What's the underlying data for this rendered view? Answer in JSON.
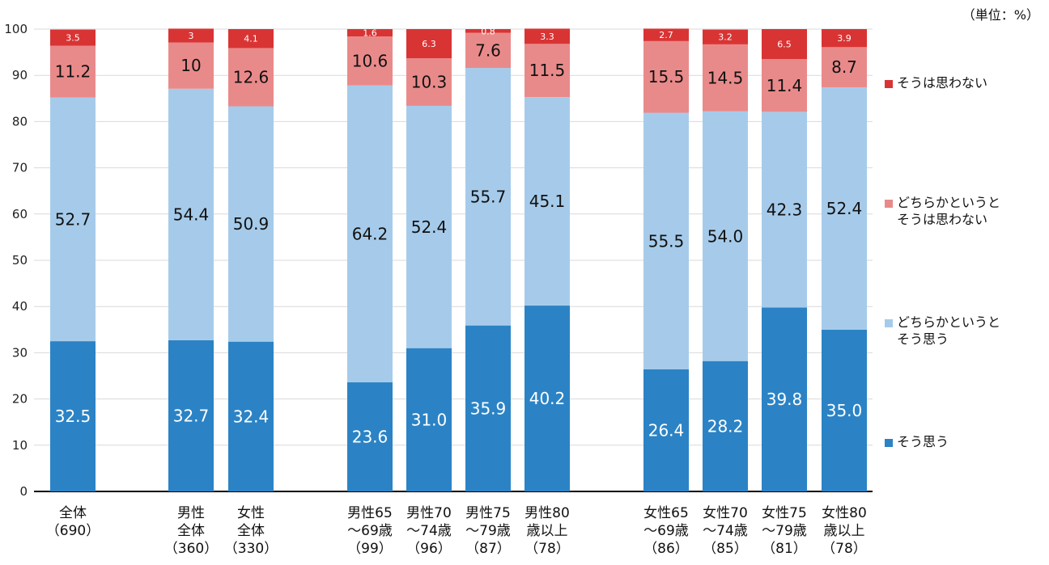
{
  "chart_data": {
    "type": "bar",
    "stacked": true,
    "unit_label": "（単位：%）",
    "ylim": [
      0,
      100
    ],
    "yticks": [
      0,
      10,
      20,
      30,
      40,
      50,
      60,
      70,
      80,
      90,
      100
    ],
    "grid": true,
    "legend_position": "right",
    "categories": [
      [
        "全体",
        "（690）"
      ],
      [
        "男性",
        "全体",
        "（360）"
      ],
      [
        "女性",
        "全体",
        "（330）"
      ],
      [
        "男性65",
        "～69歳",
        "（99）"
      ],
      [
        "男性70",
        "～74歳",
        "（96）"
      ],
      [
        "男性75",
        "～79歳",
        "（87）"
      ],
      [
        "男性80",
        "歳以上",
        "（78）"
      ],
      [
        "女性65",
        "～69歳",
        "（86）"
      ],
      [
        "女性70",
        "～74歳",
        "（85）"
      ],
      [
        "女性75",
        "～79歳",
        "（81）"
      ],
      [
        "女性80",
        "歳以上",
        "（78）"
      ]
    ],
    "series": [
      {
        "name": "そう思う",
        "legend_lines": [
          "そう思う"
        ],
        "color": "#2b83c5",
        "label_color": "#ffffff",
        "values": [
          32.5,
          32.7,
          32.4,
          23.6,
          31.0,
          35.9,
          40.2,
          26.4,
          28.2,
          39.8,
          35.0
        ],
        "labels": [
          "32.5",
          "32.7",
          "32.4",
          "23.6",
          "31.0",
          "35.9",
          "40.2",
          "26.4",
          "28.2",
          "39.8",
          "35.0"
        ]
      },
      {
        "name": "どちらかというとそう思う",
        "legend_lines": [
          "どちらかというと",
          "そう思う"
        ],
        "color": "#a6cbea",
        "label_color": "#111111",
        "values": [
          52.7,
          54.4,
          50.9,
          64.2,
          52.4,
          55.7,
          45.1,
          55.5,
          54.0,
          42.3,
          52.4
        ],
        "labels": [
          "52.7",
          "54.4",
          "50.9",
          "64.2",
          "52.4",
          "55.7",
          "45.1",
          "55.5",
          "54.0",
          "42.3",
          "52.4"
        ]
      },
      {
        "name": "どちらかというとそう は思わない",
        "legend_lines": [
          "どちらかというと",
          "そうは思わない"
        ],
        "color": "#e98a8a",
        "label_color": "#111111",
        "values": [
          11.2,
          10,
          12.6,
          10.6,
          10.3,
          7.6,
          11.5,
          15.5,
          14.5,
          11.4,
          8.7
        ],
        "labels": [
          "11.2",
          "10",
          "12.6",
          "10.6",
          "10.3",
          "7.6",
          "11.5",
          "15.5",
          "14.5",
          "11.4",
          "8.7"
        ]
      },
      {
        "name": "そうは思わない",
        "legend_lines": [
          "そうは思わない"
        ],
        "color": "#d93434",
        "label_color": "#ffffff",
        "values": [
          3.5,
          3,
          4.1,
          1.6,
          6.3,
          0.8,
          3.3,
          2.7,
          3.2,
          6.5,
          3.9
        ],
        "labels": [
          "3.5",
          "3",
          "4.1",
          "1.6",
          "6.3",
          "0.8",
          "3.3",
          "2.7",
          "3.2",
          "6.5",
          "3.9"
        ]
      }
    ]
  }
}
